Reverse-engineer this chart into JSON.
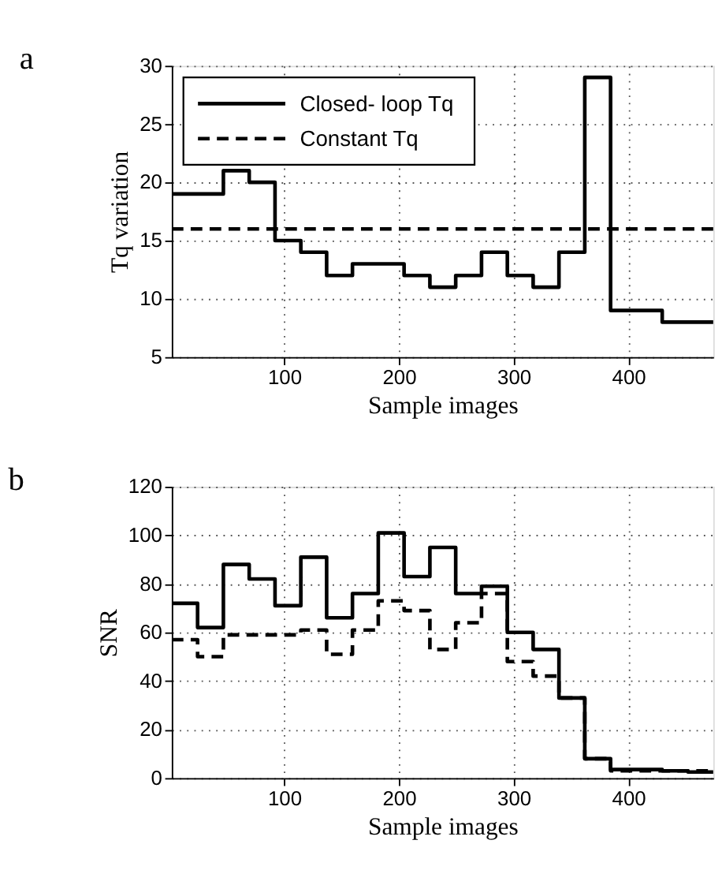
{
  "chart_data": [
    {
      "type": "step",
      "title": "a",
      "xlabel": "Sample images",
      "ylabel": "Tq variation",
      "x": [
        2,
        24.5,
        47,
        69.5,
        92,
        114.5,
        137,
        159.5,
        182,
        204.5,
        227,
        249.5,
        272,
        294.5,
        317,
        339.5,
        362,
        384.5,
        407,
        429.5,
        452,
        474
      ],
      "xlim": [
        2,
        474
      ],
      "xticks": [
        100,
        200,
        300,
        400
      ],
      "ylim": [
        5,
        30
      ],
      "yticks": [
        5,
        10,
        15,
        20,
        25,
        30
      ],
      "grid": true,
      "legend": "top left",
      "series": [
        {
          "name": "Closed- loop Tq",
          "color": "#000000",
          "line_style": "solid",
          "values": [
            19,
            19,
            21,
            20,
            15,
            14,
            12,
            13,
            13,
            12,
            11,
            12,
            14,
            12,
            11,
            14,
            29,
            9,
            9,
            8,
            8,
            8
          ]
        },
        {
          "name": "Constant Tq",
          "color": "#000000",
          "line_style": "dashed",
          "x": [
            2,
            474
          ],
          "values": [
            16,
            16
          ]
        }
      ]
    },
    {
      "type": "step",
      "title": "b",
      "xlabel": "Sample images",
      "ylabel": "SNR",
      "x": [
        2,
        24.5,
        47,
        69.5,
        92,
        114.5,
        137,
        159.5,
        182,
        204.5,
        227,
        249.5,
        272,
        294.5,
        317,
        339.5,
        362,
        384.5,
        407,
        429.5,
        452,
        474
      ],
      "xlim": [
        2,
        474
      ],
      "xticks": [
        100,
        200,
        300,
        400
      ],
      "ylim": [
        0,
        120
      ],
      "yticks": [
        0,
        20,
        40,
        60,
        80,
        100,
        120
      ],
      "grid": true,
      "series": [
        {
          "color": "#000000",
          "line_style": "solid",
          "values": [
            72,
            62,
            88,
            82,
            71,
            91,
            66,
            76,
            101,
            83,
            95,
            76,
            79,
            60,
            53,
            33,
            8,
            3.5,
            3.5,
            3,
            2.5,
            2.5
          ]
        },
        {
          "color": "#000000",
          "line_style": "dashed",
          "values": [
            57,
            50,
            59,
            59,
            59,
            61,
            51,
            61,
            73,
            69,
            53,
            64,
            76,
            48,
            42,
            33,
            8,
            3,
            3,
            3,
            3,
            3
          ]
        }
      ]
    }
  ]
}
